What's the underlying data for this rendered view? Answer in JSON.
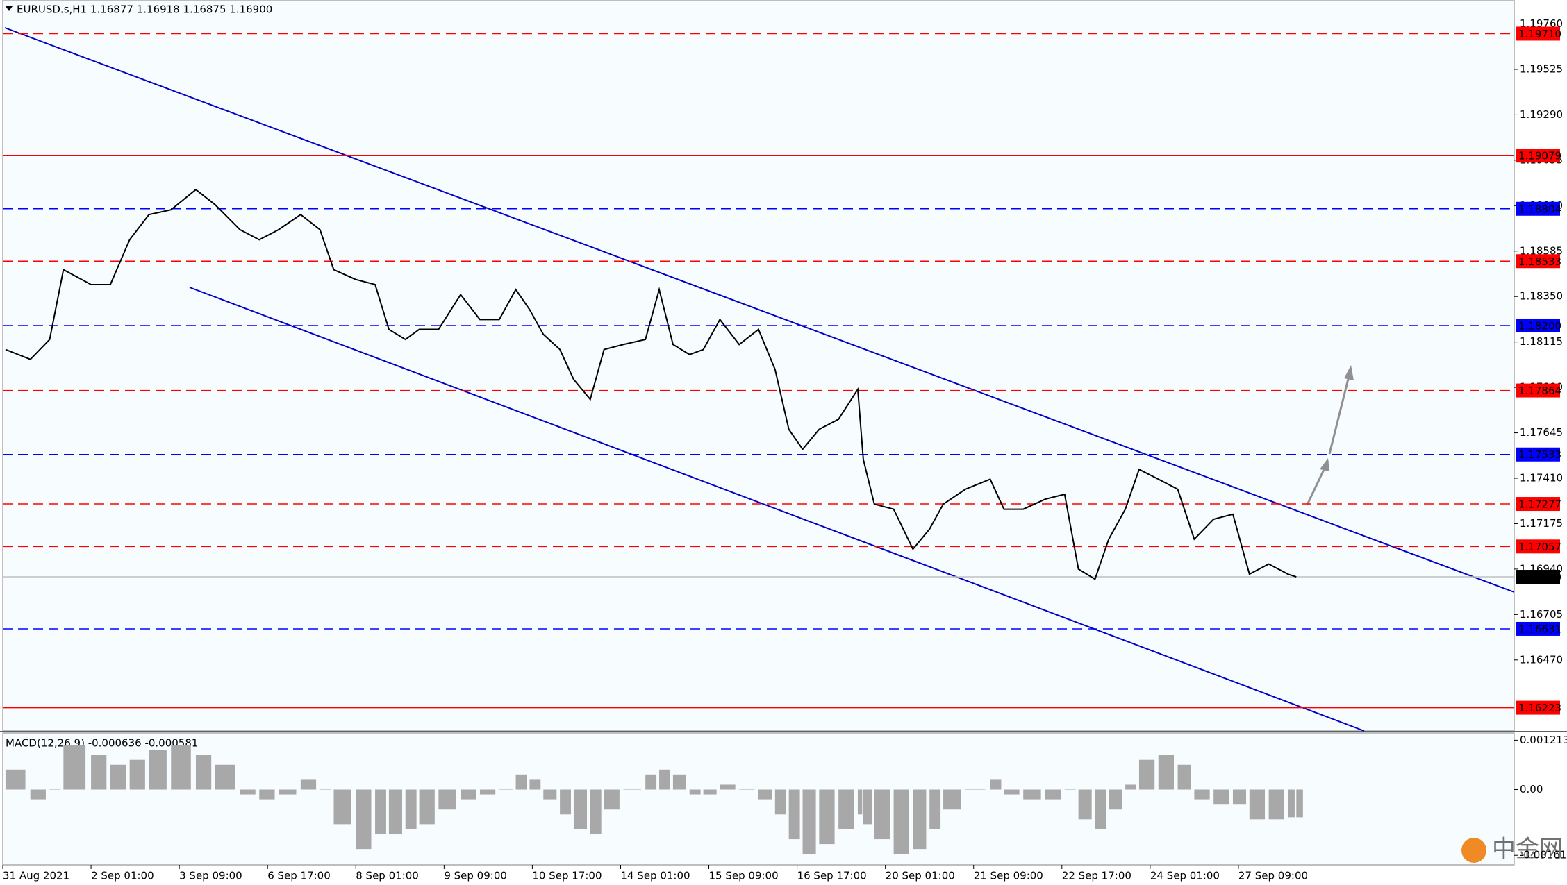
{
  "chart_data": [
    {
      "type": "line",
      "title": "EURUSD.s,H1  1.16877 1.16918 1.16875 1.16900",
      "x": [
        1,
        10,
        17,
        22,
        32,
        39,
        46,
        53,
        61,
        70,
        77,
        86,
        93,
        100,
        108,
        115,
        120,
        128,
        135,
        140,
        146,
        151,
        158,
        166,
        173,
        180,
        186,
        191,
        196,
        202,
        207,
        213,
        218,
        225,
        233,
        238,
        243,
        249,
        254,
        260,
        267,
        274,
        280,
        285,
        290,
        296,
        303,
        310,
        312,
        316,
        323,
        330,
        336,
        341,
        349,
        358,
        363,
        370,
        378,
        385,
        390,
        396,
        401,
        407,
        412,
        419,
        426,
        432,
        439,
        446,
        452,
        459,
        466,
        469
      ],
      "values": [
        1.18076,
        1.18025,
        1.18128,
        1.18489,
        1.18412,
        1.18412,
        1.18644,
        1.18774,
        1.18799,
        1.18903,
        1.18825,
        1.18696,
        1.18644,
        1.18696,
        1.18774,
        1.18696,
        1.18489,
        1.18438,
        1.18412,
        1.1818,
        1.18128,
        1.1818,
        1.1818,
        1.1836,
        1.18231,
        1.18231,
        1.18386,
        1.18283,
        1.18154,
        1.18076,
        1.17921,
        1.17818,
        1.18076,
        1.18102,
        1.18128,
        1.18386,
        1.18102,
        1.1805,
        1.18076,
        1.18231,
        1.18102,
        1.1818,
        1.17973,
        1.17663,
        1.1756,
        1.17663,
        1.17715,
        1.1787,
        1.17508,
        1.17276,
        1.1725,
        1.17043,
        1.17147,
        1.17276,
        1.17353,
        1.17405,
        1.1725,
        1.1725,
        1.17302,
        1.17327,
        1.1694,
        1.16888,
        1.17095,
        1.1725,
        1.17456,
        1.17405,
        1.17353,
        1.17095,
        1.17198,
        1.17224,
        1.16914,
        1.16966,
        1.16914,
        1.169
      ],
      "color": "#000000",
      "xlim": [
        0,
        548
      ],
      "xticks": [
        {
          "value": 0,
          "label": "31 Aug 2021"
        },
        {
          "value": 32,
          "label": "2 Sep 01:00"
        },
        {
          "value": 64,
          "label": "3 Sep 09:00"
        },
        {
          "value": 96,
          "label": "6 Sep 17:00"
        },
        {
          "value": 128,
          "label": "8 Sep 01:00"
        },
        {
          "value": 160,
          "label": "9 Sep 09:00"
        },
        {
          "value": 192,
          "label": "10 Sep 17:00"
        },
        {
          "value": 224,
          "label": "14 Sep 01:00"
        },
        {
          "value": 256,
          "label": "15 Sep 09:00"
        },
        {
          "value": 288,
          "label": "16 Sep 17:00"
        },
        {
          "value": 320,
          "label": "20 Sep 01:00"
        },
        {
          "value": 352,
          "label": "21 Sep 09:00"
        },
        {
          "value": 384,
          "label": "22 Sep 17:00"
        },
        {
          "value": 416,
          "label": "24 Sep 01:00"
        },
        {
          "value": 448,
          "label": "27 Sep 09:00"
        }
      ],
      "ylim": [
        1.16103,
        1.19884
      ],
      "yticks": [
        {
          "value": 1.1976,
          "label": "1.19760"
        },
        {
          "value": 1.19525,
          "label": "1.19525"
        },
        {
          "value": 1.1929,
          "label": "1.19290"
        },
        {
          "value": 1.19055,
          "label": "1.19055"
        },
        {
          "value": 1.1882,
          "label": "1.18820"
        },
        {
          "value": 1.18585,
          "label": "1.18585"
        },
        {
          "value": 1.1835,
          "label": "1.18350"
        },
        {
          "value": 1.18115,
          "label": "1.18115"
        },
        {
          "value": 1.1788,
          "label": "1.17880"
        },
        {
          "value": 1.17645,
          "label": "1.17645"
        },
        {
          "value": 1.1741,
          "label": "1.17410"
        },
        {
          "value": 1.17175,
          "label": "1.17175"
        },
        {
          "value": 1.1694,
          "label": "1.16940"
        },
        {
          "value": 1.16705,
          "label": "1.16705"
        },
        {
          "value": 1.1647,
          "label": "1.16470"
        }
      ],
      "levels": [
        {
          "value": 1.1971,
          "label": "1.19710",
          "color": "#ff0000",
          "style": "dashed"
        },
        {
          "value": 1.19079,
          "label": "1.19079",
          "color": "#ff0000",
          "style": "solid"
        },
        {
          "value": 1.18804,
          "label": "1.18804",
          "color": "#0000ff",
          "style": "dashed"
        },
        {
          "value": 1.18533,
          "label": "1.18533",
          "color": "#ff0000",
          "style": "dashed"
        },
        {
          "value": 1.182,
          "label": "1.18200",
          "color": "#0000ff",
          "style": "dashed"
        },
        {
          "value": 1.17864,
          "label": "1.17864",
          "color": "#ff0000",
          "style": "dashed"
        },
        {
          "value": 1.17533,
          "label": "1.17533",
          "color": "#0000ff",
          "style": "dashed"
        },
        {
          "value": 1.17277,
          "label": "1.17277",
          "color": "#ff0000",
          "style": "dashed"
        },
        {
          "value": 1.17057,
          "label": "1.17057",
          "color": "#ff0000",
          "style": "dashed"
        },
        {
          "value": 1.169,
          "label": "1.16900",
          "color": "#000000",
          "line_color": "#c0c0c0",
          "style": "solid"
        },
        {
          "value": 1.16631,
          "label": "1.16631",
          "color": "#0000ff",
          "style": "dashed"
        },
        {
          "value": 1.16223,
          "label": "1.16223",
          "color": "#ff0000",
          "style": "solid"
        }
      ]
    },
    {
      "type": "bar",
      "title": "MACD(12,26,9) -0.000636 -0.000581",
      "x": [
        1,
        10,
        17,
        22,
        32,
        39,
        46,
        53,
        61,
        70,
        77,
        86,
        93,
        100,
        108,
        115,
        120,
        128,
        135,
        140,
        146,
        151,
        158,
        166,
        173,
        180,
        186,
        191,
        196,
        202,
        207,
        213,
        218,
        225,
        233,
        238,
        243,
        249,
        254,
        260,
        267,
        274,
        280,
        285,
        290,
        296,
        303,
        310,
        312,
        316,
        323,
        330,
        336,
        341,
        349,
        358,
        363,
        370,
        378,
        385,
        390,
        396,
        401,
        407,
        412,
        419,
        426,
        432,
        439,
        446,
        452,
        459,
        466,
        469
      ],
      "values": [
        0.00049,
        -0.00024,
        0,
        0.0011,
        0.00085,
        0.00061,
        0.00073,
        0.00098,
        0.0011,
        0.00085,
        0.00061,
        -0.00012,
        -0.00024,
        -0.00012,
        0.00024,
        0,
        -0.00085,
        -0.00146,
        -0.0011,
        -0.0011,
        -0.00098,
        -0.00085,
        -0.00049,
        -0.00024,
        -0.00012,
        0,
        0.00037,
        0.00024,
        -0.00024,
        -0.00061,
        -0.00098,
        -0.0011,
        -0.00049,
        0,
        0.00037,
        0.00049,
        0.00037,
        -0.00012,
        -0.00012,
        0.00012,
        0,
        -0.00024,
        -0.00061,
        -0.00122,
        -0.00159,
        -0.00134,
        -0.00098,
        -0.00061,
        -0.00085,
        -0.00122,
        -0.00159,
        -0.00146,
        -0.00098,
        -0.00049,
        0,
        0.00024,
        -0.00012,
        -0.00024,
        -0.00024,
        0,
        -0.00073,
        -0.00098,
        -0.00049,
        0.00012,
        0.00073,
        0.00085,
        0.00061,
        -0.00024,
        -0.00037,
        -0.00037,
        -0.00073,
        -0.00073,
        -0.00068,
        -0.00068
      ],
      "color": "#a8a8a8",
      "xlim": [
        0,
        548
      ],
      "ylim": [
        -0.00185,
        0.00139
      ],
      "yticks": [
        0.001213,
        {
          "value": 0,
          "label": "0.00"
        },
        -0.001615
      ]
    }
  ],
  "watermark": "中金网"
}
